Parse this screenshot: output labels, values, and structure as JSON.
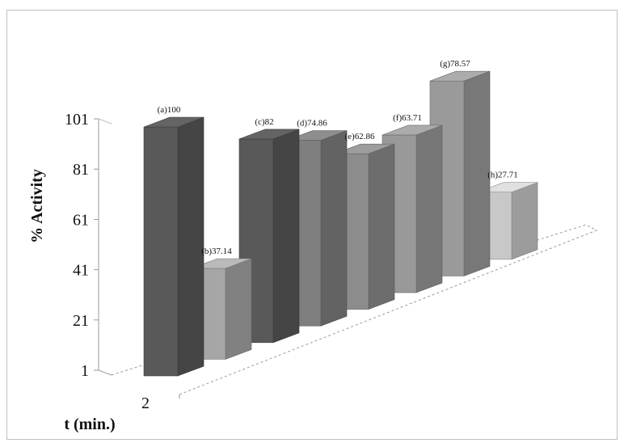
{
  "chart_data": {
    "type": "bar",
    "title": "",
    "ylabel": "% Activity",
    "xlabel": "t (min.)",
    "x_tick": "2",
    "ylim": [
      1,
      101
    ],
    "yticks": [
      "1",
      "21",
      "41",
      "61",
      "81",
      "101"
    ],
    "grid": false,
    "legend": "none",
    "bars": [
      {
        "label": "(a)100",
        "value": 100,
        "color": "#595959"
      },
      {
        "label": "(b)37.14",
        "value": 37.14,
        "color": "#a6a6a6"
      },
      {
        "label": "(c)82",
        "value": 82,
        "color": "#595959"
      },
      {
        "label": "(d)74.86",
        "value": 74.86,
        "color": "#7f7f7f"
      },
      {
        "label": "(e)62.86",
        "value": 62.86,
        "color": "#8c8c8c"
      },
      {
        "label": "(f)63.71",
        "value": 63.71,
        "color": "#999999"
      },
      {
        "label": "(g)78.57",
        "value": 78.57,
        "color": "#9a9a9a"
      },
      {
        "label": "(h)27.71",
        "value": 27.71,
        "color": "#c8c8c8"
      }
    ]
  }
}
